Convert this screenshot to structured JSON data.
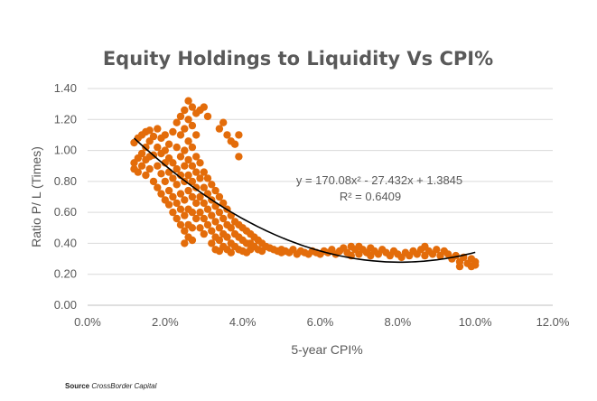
{
  "chart_data": {
    "type": "scatter",
    "title": "Equity Holdings to Liquidity Vs CPI%",
    "xlabel": "5-year CPI%",
    "ylabel": "Ratio P/ L (Times)",
    "xlim": [
      0,
      0.12
    ],
    "ylim": [
      0,
      1.4
    ],
    "x_ticks": [
      "0.0%",
      "2.0%",
      "4.0%",
      "6.0%",
      "8.0%",
      "10.0%",
      "12.0%"
    ],
    "y_ticks": [
      "0.00",
      "0.20",
      "0.40",
      "0.60",
      "0.80",
      "1.00",
      "1.20",
      "1.40"
    ],
    "grid": true,
    "marker_color": "#E36C0A",
    "trendline": {
      "type": "polynomial",
      "coefficients": [
        170.08,
        -27.432,
        1.3845
      ],
      "x_range": [
        0.012,
        0.1
      ],
      "color": "#000000",
      "equation": "y = 170.08x² - 27.432x + 1.3845",
      "r_squared": "R² = 0.6409"
    },
    "series": [
      {
        "values": [
          [
            0.012,
            1.05
          ],
          [
            0.012,
            0.92
          ],
          [
            0.012,
            0.88
          ],
          [
            0.013,
            0.95
          ],
          [
            0.013,
            1.08
          ],
          [
            0.013,
            0.86
          ],
          [
            0.014,
            0.98
          ],
          [
            0.014,
            1.1
          ],
          [
            0.014,
            0.9
          ],
          [
            0.015,
            1.12
          ],
          [
            0.015,
            1.02
          ],
          [
            0.015,
            0.94
          ],
          [
            0.015,
            0.84
          ],
          [
            0.016,
            1.13
          ],
          [
            0.016,
            0.96
          ],
          [
            0.016,
            1.06
          ],
          [
            0.016,
            0.88
          ],
          [
            0.017,
            1.09
          ],
          [
            0.017,
            0.8
          ],
          [
            0.017,
            0.97
          ],
          [
            0.018,
            1.14
          ],
          [
            0.018,
            0.9
          ],
          [
            0.018,
            1.02
          ],
          [
            0.018,
            0.76
          ],
          [
            0.019,
            1.08
          ],
          [
            0.019,
            0.85
          ],
          [
            0.019,
            0.98
          ],
          [
            0.019,
            0.72
          ],
          [
            0.02,
            1.1
          ],
          [
            0.02,
            0.92
          ],
          [
            0.02,
            0.8
          ],
          [
            0.02,
            1.0
          ],
          [
            0.02,
            0.68
          ],
          [
            0.021,
            0.95
          ],
          [
            0.021,
            0.86
          ],
          [
            0.021,
            0.74
          ],
          [
            0.021,
            1.04
          ],
          [
            0.021,
            0.65
          ],
          [
            0.022,
            0.92
          ],
          [
            0.022,
            0.82
          ],
          [
            0.022,
            0.7
          ],
          [
            0.022,
            0.6
          ],
          [
            0.022,
            1.12
          ],
          [
            0.023,
            0.88
          ],
          [
            0.023,
            0.78
          ],
          [
            0.023,
            0.66
          ],
          [
            0.023,
            1.18
          ],
          [
            0.023,
            1.02
          ],
          [
            0.023,
            0.56
          ],
          [
            0.024,
            1.22
          ],
          [
            0.024,
            1.1
          ],
          [
            0.024,
            0.96
          ],
          [
            0.024,
            0.84
          ],
          [
            0.024,
            0.72
          ],
          [
            0.024,
            0.62
          ],
          [
            0.024,
            0.52
          ],
          [
            0.025,
            1.26
          ],
          [
            0.025,
            1.14
          ],
          [
            0.025,
            1.0
          ],
          [
            0.025,
            0.9
          ],
          [
            0.025,
            0.8
          ],
          [
            0.025,
            0.68
          ],
          [
            0.025,
            0.58
          ],
          [
            0.025,
            0.48
          ],
          [
            0.025,
            0.4
          ],
          [
            0.026,
            1.32
          ],
          [
            0.026,
            1.2
          ],
          [
            0.026,
            1.06
          ],
          [
            0.026,
            0.94
          ],
          [
            0.026,
            0.84
          ],
          [
            0.026,
            0.74
          ],
          [
            0.026,
            0.62
          ],
          [
            0.026,
            0.52
          ],
          [
            0.026,
            0.44
          ],
          [
            0.027,
            1.28
          ],
          [
            0.027,
            1.16
          ],
          [
            0.027,
            1.02
          ],
          [
            0.027,
            0.9
          ],
          [
            0.027,
            0.8
          ],
          [
            0.027,
            0.7
          ],
          [
            0.027,
            0.6
          ],
          [
            0.027,
            0.5
          ],
          [
            0.027,
            0.42
          ],
          [
            0.028,
            1.24
          ],
          [
            0.028,
            1.1
          ],
          [
            0.028,
            0.96
          ],
          [
            0.028,
            0.86
          ],
          [
            0.028,
            0.76
          ],
          [
            0.028,
            0.66
          ],
          [
            0.028,
            0.56
          ],
          [
            0.029,
            1.26
          ],
          [
            0.029,
            0.92
          ],
          [
            0.029,
            0.82
          ],
          [
            0.029,
            0.7
          ],
          [
            0.029,
            0.6
          ],
          [
            0.029,
            0.5
          ],
          [
            0.03,
            1.28
          ],
          [
            0.03,
            0.86
          ],
          [
            0.03,
            0.76
          ],
          [
            0.03,
            0.66
          ],
          [
            0.03,
            0.56
          ],
          [
            0.03,
            0.46
          ],
          [
            0.031,
            1.22
          ],
          [
            0.031,
            0.82
          ],
          [
            0.031,
            0.72
          ],
          [
            0.031,
            0.62
          ],
          [
            0.031,
            0.52
          ],
          [
            0.032,
            0.78
          ],
          [
            0.032,
            0.68
          ],
          [
            0.032,
            0.58
          ],
          [
            0.032,
            0.48
          ],
          [
            0.032,
            0.4
          ],
          [
            0.033,
            0.74
          ],
          [
            0.033,
            0.64
          ],
          [
            0.033,
            0.54
          ],
          [
            0.033,
            0.44
          ],
          [
            0.033,
            0.36
          ],
          [
            0.034,
            1.14
          ],
          [
            0.034,
            0.7
          ],
          [
            0.034,
            0.6
          ],
          [
            0.034,
            0.5
          ],
          [
            0.034,
            0.42
          ],
          [
            0.034,
            0.35
          ],
          [
            0.035,
            1.18
          ],
          [
            0.035,
            0.66
          ],
          [
            0.035,
            0.56
          ],
          [
            0.035,
            0.46
          ],
          [
            0.035,
            0.38
          ],
          [
            0.036,
            1.1
          ],
          [
            0.036,
            0.62
          ],
          [
            0.036,
            0.52
          ],
          [
            0.036,
            0.44
          ],
          [
            0.036,
            0.36
          ],
          [
            0.037,
            1.06
          ],
          [
            0.037,
            0.58
          ],
          [
            0.037,
            0.5
          ],
          [
            0.037,
            0.4
          ],
          [
            0.037,
            0.34
          ],
          [
            0.038,
            1.04
          ],
          [
            0.038,
            0.54
          ],
          [
            0.038,
            0.46
          ],
          [
            0.038,
            0.38
          ],
          [
            0.039,
            0.96
          ],
          [
            0.039,
            1.1
          ],
          [
            0.039,
            0.52
          ],
          [
            0.039,
            0.44
          ],
          [
            0.039,
            0.36
          ],
          [
            0.04,
            0.5
          ],
          [
            0.04,
            0.42
          ],
          [
            0.04,
            0.35
          ],
          [
            0.041,
            0.48
          ],
          [
            0.041,
            0.4
          ],
          [
            0.041,
            0.34
          ],
          [
            0.042,
            0.46
          ],
          [
            0.042,
            0.4
          ],
          [
            0.042,
            0.36
          ],
          [
            0.043,
            0.44
          ],
          [
            0.043,
            0.38
          ],
          [
            0.044,
            0.42
          ],
          [
            0.044,
            0.36
          ],
          [
            0.045,
            0.4
          ],
          [
            0.045,
            0.35
          ],
          [
            0.046,
            0.38
          ],
          [
            0.047,
            0.37
          ],
          [
            0.048,
            0.36
          ],
          [
            0.049,
            0.35
          ],
          [
            0.05,
            0.36
          ],
          [
            0.05,
            0.34
          ],
          [
            0.051,
            0.35
          ],
          [
            0.052,
            0.34
          ],
          [
            0.053,
            0.36
          ],
          [
            0.054,
            0.33
          ],
          [
            0.055,
            0.35
          ],
          [
            0.056,
            0.34
          ],
          [
            0.057,
            0.33
          ],
          [
            0.058,
            0.35
          ],
          [
            0.059,
            0.34
          ],
          [
            0.06,
            0.33
          ],
          [
            0.061,
            0.35
          ],
          [
            0.062,
            0.34
          ],
          [
            0.063,
            0.36
          ],
          [
            0.064,
            0.33
          ],
          [
            0.065,
            0.35
          ],
          [
            0.066,
            0.37
          ],
          [
            0.067,
            0.34
          ],
          [
            0.068,
            0.38
          ],
          [
            0.068,
            0.32
          ],
          [
            0.069,
            0.36
          ],
          [
            0.07,
            0.38
          ],
          [
            0.07,
            0.33
          ],
          [
            0.071,
            0.36
          ],
          [
            0.072,
            0.34
          ],
          [
            0.073,
            0.37
          ],
          [
            0.073,
            0.32
          ],
          [
            0.074,
            0.35
          ],
          [
            0.075,
            0.33
          ],
          [
            0.076,
            0.36
          ],
          [
            0.077,
            0.34
          ],
          [
            0.078,
            0.32
          ],
          [
            0.079,
            0.35
          ],
          [
            0.08,
            0.33
          ],
          [
            0.081,
            0.31
          ],
          [
            0.082,
            0.34
          ],
          [
            0.083,
            0.32
          ],
          [
            0.084,
            0.35
          ],
          [
            0.085,
            0.33
          ],
          [
            0.086,
            0.36
          ],
          [
            0.087,
            0.38
          ],
          [
            0.087,
            0.32
          ],
          [
            0.088,
            0.35
          ],
          [
            0.089,
            0.33
          ],
          [
            0.09,
            0.36
          ],
          [
            0.091,
            0.32
          ],
          [
            0.092,
            0.35
          ],
          [
            0.093,
            0.33
          ],
          [
            0.094,
            0.3
          ],
          [
            0.095,
            0.32
          ],
          [
            0.096,
            0.28
          ],
          [
            0.097,
            0.31
          ],
          [
            0.098,
            0.27
          ],
          [
            0.099,
            0.3
          ],
          [
            0.1,
            0.28
          ],
          [
            0.1,
            0.26
          ],
          [
            0.099,
            0.25
          ],
          [
            0.096,
            0.25
          ]
        ]
      }
    ]
  },
  "source": {
    "label": "Source",
    "name": "CrossBorder Capital"
  }
}
